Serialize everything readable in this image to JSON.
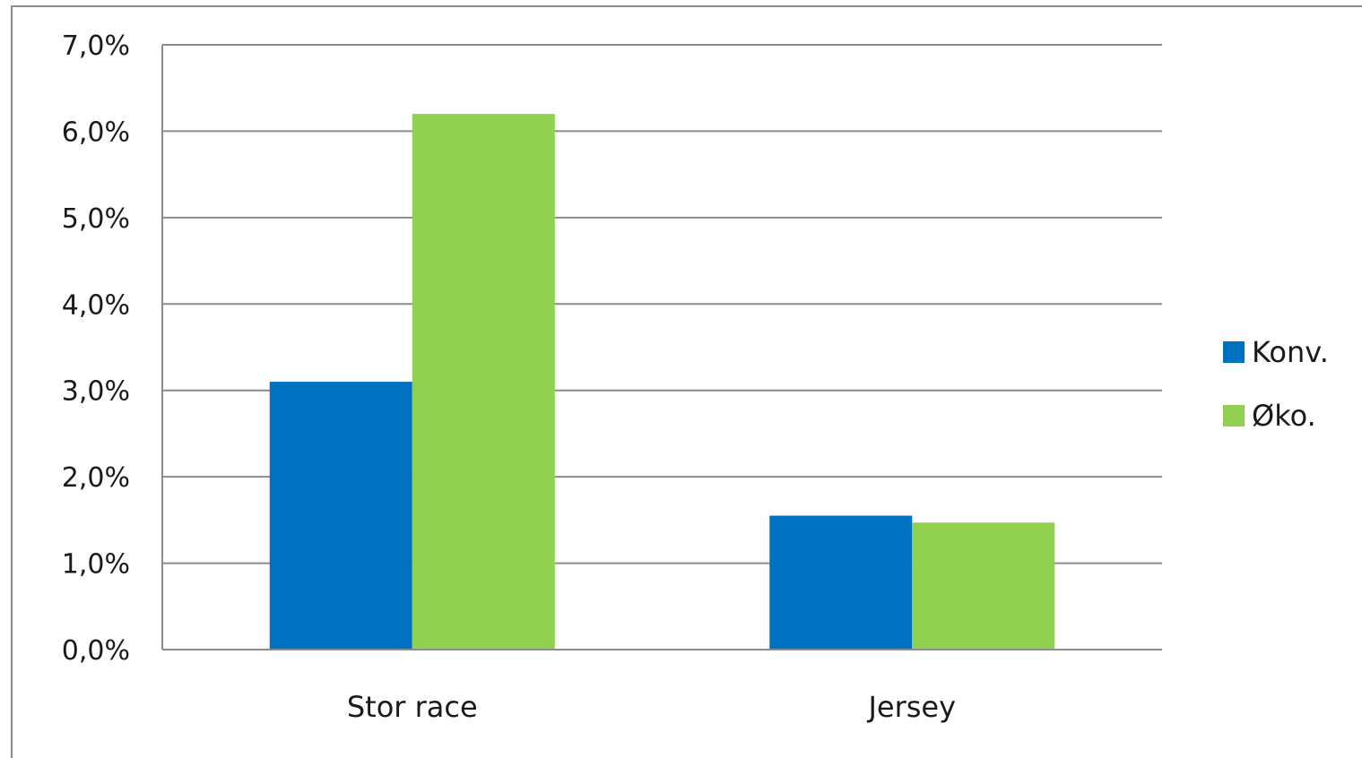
{
  "chart_data": {
    "type": "bar",
    "categories": [
      "Stor race",
      "Jersey"
    ],
    "series": [
      {
        "name": "Konv.",
        "values": [
          3.1,
          1.55
        ],
        "color": "#0070c0"
      },
      {
        "name": "Øko.",
        "values": [
          6.2,
          1.47
        ],
        "color": "#92d050"
      }
    ],
    "ylim": [
      0,
      7
    ],
    "yticks": [
      0,
      1,
      2,
      3,
      4,
      5,
      6,
      7
    ],
    "ytick_labels": [
      "0,0%",
      "1,0%",
      "2,0%",
      "3,0%",
      "4,0%",
      "5,0%",
      "6,0%",
      "7,0%"
    ],
    "grid": true,
    "legend_position": "right",
    "title": "",
    "xlabel": "",
    "ylabel": ""
  }
}
